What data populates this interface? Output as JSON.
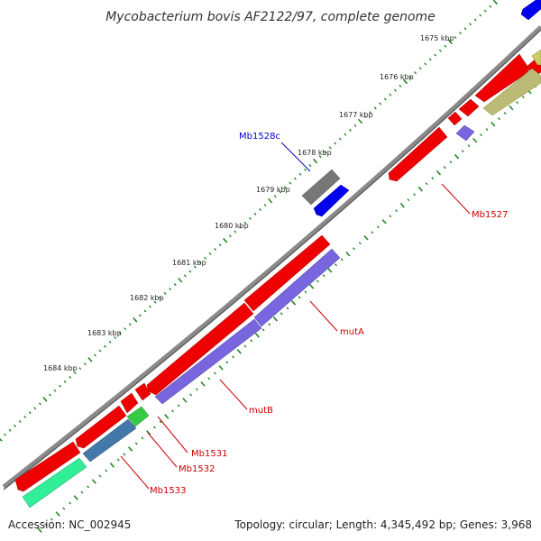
{
  "title": "Mycobacterium bovis AF2122/97, complete genome",
  "footer": {
    "accession": "Accession: NC_002945",
    "topology": "Topology: circular; Length: 4,345,492 bp; Genes: 3,968"
  },
  "ticks": [
    "1675 kbp",
    "1676 kbp",
    "1677 kbp",
    "1678 kbp",
    "1679 kbp",
    "1680 kbp",
    "1681 kbp",
    "1682 kbp",
    "1683 kbp",
    "1684 kbp"
  ],
  "genes": [
    {
      "id": "Mb1528c",
      "label": "Mb1528c",
      "color": "#0000cc"
    },
    {
      "id": "Mb1527",
      "label": "Mb1527",
      "color": "#cc0000"
    },
    {
      "id": "mutA",
      "label": "mutA",
      "color": "#cc0000"
    },
    {
      "id": "mutB",
      "label": "mutB",
      "color": "#cc0000"
    },
    {
      "id": "Mb1531",
      "label": "Mb1531",
      "color": "#cc0000"
    },
    {
      "id": "Mb1532",
      "label": "Mb1532",
      "color": "#cc0000"
    },
    {
      "id": "Mb1533",
      "label": "Mb1533",
      "color": "#cc0000"
    }
  ],
  "colors": {
    "backbone": "#8a8a8a",
    "forward_cds": "#ee0000",
    "reverse_cds": "#0000ee",
    "purple_cds": "#7766dd",
    "gray_cds": "#666666",
    "olive_cds": "#bbbb77",
    "steel_cds": "#4477aa",
    "green_cds": "#33cc44",
    "mint_cds": "#33ee99",
    "dots": "#228822"
  }
}
